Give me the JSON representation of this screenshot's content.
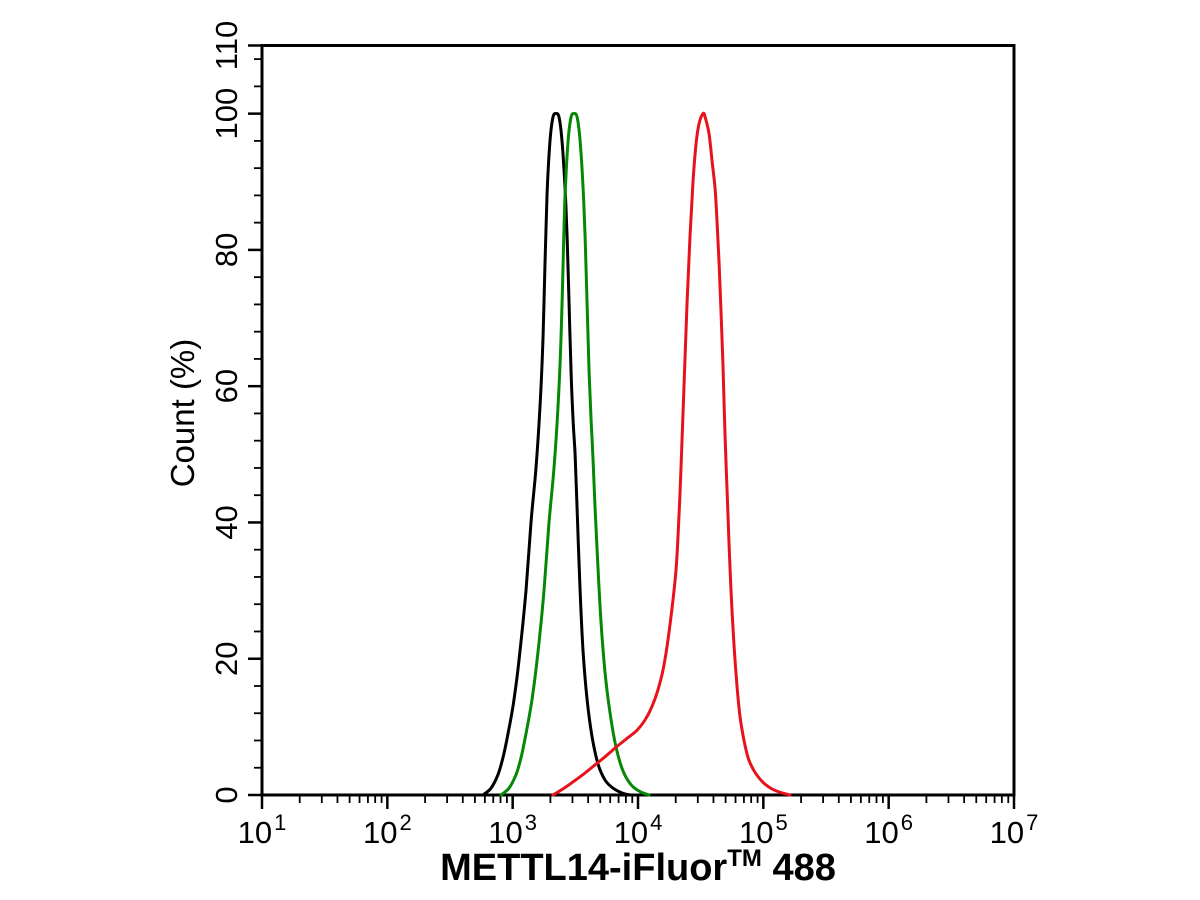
{
  "figure": {
    "background": "#ffffff",
    "text_color": "#000000",
    "axis_color": "#000000"
  },
  "chart_data": {
    "type": "line",
    "title": "",
    "x_scale": "log10",
    "xlabel": "METTL14-iFluor™ 488",
    "xlabel_parts": {
      "base": "METTL14-iFluor",
      "superscript": "TM",
      "suffix": " 488"
    },
    "ylabel": "Count (%)",
    "xlim": [
      10,
      10000000
    ],
    "xlim_exp": [
      1,
      7
    ],
    "ylim": [
      0,
      110
    ],
    "x_tick_base": "10",
    "x_major_ticks_exp": [
      1,
      2,
      3,
      4,
      5,
      6,
      7
    ],
    "x_minor_ticks": "log decades k=2..9",
    "y_major_ticks": [
      0,
      20,
      40,
      60,
      80,
      100,
      110
    ],
    "y_minor_step": 4,
    "grid": false,
    "legend": null,
    "axis_color": "#000000",
    "text_color": "#000000",
    "series": [
      {
        "name": "black",
        "color": "#000000",
        "stroke_width": 3,
        "peak_percent": 100,
        "points_logx_pct": [
          [
            2.763,
            0
          ],
          [
            2.827,
            1
          ],
          [
            2.883,
            3
          ],
          [
            2.923,
            5.5
          ],
          [
            2.963,
            9
          ],
          [
            3.011,
            14
          ],
          [
            3.058,
            21
          ],
          [
            3.106,
            30
          ],
          [
            3.146,
            40
          ],
          [
            3.186,
            48
          ],
          [
            3.218,
            57
          ],
          [
            3.242,
            67
          ],
          [
            3.258,
            78
          ],
          [
            3.274,
            88
          ],
          [
            3.298,
            96
          ],
          [
            3.322,
            99.5
          ],
          [
            3.346,
            100
          ],
          [
            3.37,
            99.5
          ],
          [
            3.394,
            96
          ],
          [
            3.418,
            89
          ],
          [
            3.434,
            82
          ],
          [
            3.45,
            72
          ],
          [
            3.466,
            62
          ],
          [
            3.482,
            55
          ],
          [
            3.498,
            50
          ],
          [
            3.514,
            42
          ],
          [
            3.538,
            30
          ],
          [
            3.562,
            21
          ],
          [
            3.594,
            14
          ],
          [
            3.634,
            8.5
          ],
          [
            3.682,
            4.5
          ],
          [
            3.737,
            2.2
          ],
          [
            3.801,
            1
          ],
          [
            3.873,
            0.3
          ],
          [
            3.937,
            0
          ]
        ]
      },
      {
        "name": "green",
        "color": "#058805",
        "stroke_width": 3,
        "peak_percent": 100,
        "points_logx_pct": [
          [
            2.907,
            0
          ],
          [
            2.971,
            1
          ],
          [
            3.027,
            3
          ],
          [
            3.067,
            5.5
          ],
          [
            3.106,
            9
          ],
          [
            3.154,
            14
          ],
          [
            3.202,
            21
          ],
          [
            3.25,
            30
          ],
          [
            3.29,
            40
          ],
          [
            3.33,
            48
          ],
          [
            3.362,
            57
          ],
          [
            3.386,
            67
          ],
          [
            3.402,
            78
          ],
          [
            3.418,
            88
          ],
          [
            3.442,
            96
          ],
          [
            3.466,
            99.5
          ],
          [
            3.49,
            100
          ],
          [
            3.514,
            99.5
          ],
          [
            3.538,
            96
          ],
          [
            3.562,
            89
          ],
          [
            3.578,
            82
          ],
          [
            3.594,
            72
          ],
          [
            3.61,
            62
          ],
          [
            3.626,
            55
          ],
          [
            3.642,
            49
          ],
          [
            3.658,
            42
          ],
          [
            3.682,
            33
          ],
          [
            3.706,
            25
          ],
          [
            3.737,
            18
          ],
          [
            3.777,
            12
          ],
          [
            3.825,
            7
          ],
          [
            3.881,
            3.5
          ],
          [
            3.945,
            1.5
          ],
          [
            4.016,
            0.5
          ],
          [
            4.088,
            0
          ]
        ]
      },
      {
        "name": "red",
        "color": "#e8121b",
        "stroke_width": 3,
        "peak_percent": 100,
        "points_logx_pct": [
          [
            3.322,
            0
          ],
          [
            3.394,
            0.8
          ],
          [
            3.473,
            1.8
          ],
          [
            3.561,
            3
          ],
          [
            3.649,
            4.3
          ],
          [
            3.737,
            5.6
          ],
          [
            3.824,
            7
          ],
          [
            3.912,
            8.3
          ],
          [
            3.992,
            9.5
          ],
          [
            4.056,
            11
          ],
          [
            4.112,
            13
          ],
          [
            4.16,
            15.5
          ],
          [
            4.207,
            19
          ],
          [
            4.255,
            25
          ],
          [
            4.303,
            33
          ],
          [
            4.327,
            41
          ],
          [
            4.343,
            48
          ],
          [
            4.367,
            60
          ],
          [
            4.391,
            72
          ],
          [
            4.415,
            82
          ],
          [
            4.439,
            90
          ],
          [
            4.463,
            95.5
          ],
          [
            4.487,
            98.5
          ],
          [
            4.519,
            100
          ],
          [
            4.535,
            99.5
          ],
          [
            4.567,
            97
          ],
          [
            4.591,
            93
          ],
          [
            4.615,
            89
          ],
          [
            4.631,
            84
          ],
          [
            4.647,
            78
          ],
          [
            4.662,
            71
          ],
          [
            4.678,
            63
          ],
          [
            4.694,
            53
          ],
          [
            4.71,
            45
          ],
          [
            4.726,
            37
          ],
          [
            4.742,
            30
          ],
          [
            4.766,
            22
          ],
          [
            4.79,
            16
          ],
          [
            4.814,
            11.5
          ],
          [
            4.846,
            8
          ],
          [
            4.878,
            5.5
          ],
          [
            4.918,
            3.8
          ],
          [
            4.966,
            2.5
          ],
          [
            5.013,
            1.6
          ],
          [
            5.069,
            0.9
          ],
          [
            5.133,
            0.4
          ],
          [
            5.213,
            0
          ]
        ]
      }
    ]
  }
}
